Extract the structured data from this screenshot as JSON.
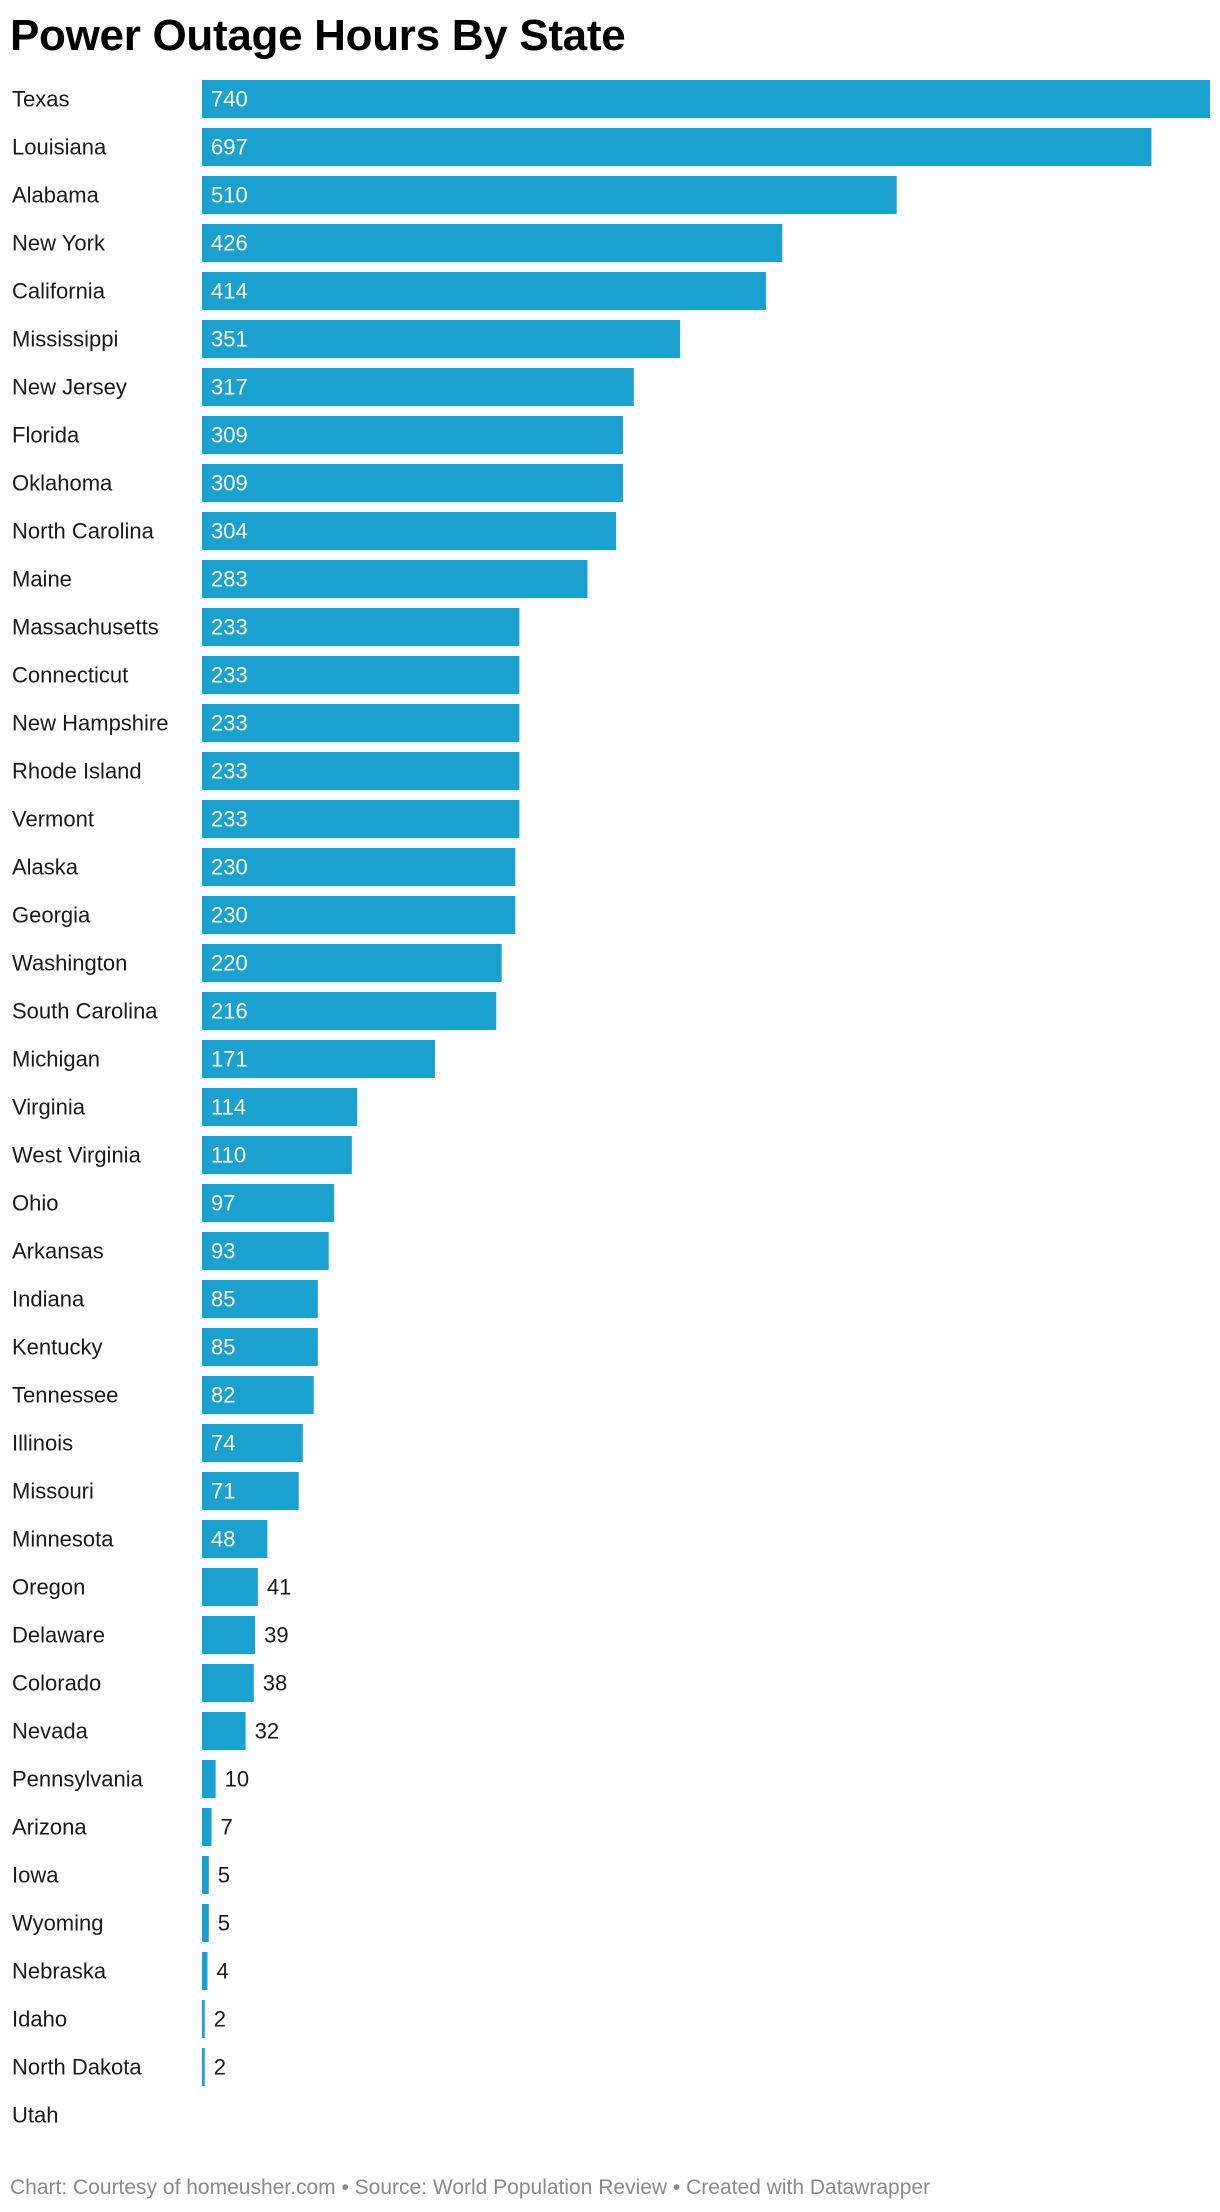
{
  "chart_data": {
    "type": "bar",
    "orientation": "horizontal",
    "title": "Power Outage Hours By State",
    "bar_color": "#1aa1cf",
    "categories": [
      "Texas",
      "Louisiana",
      "Alabama",
      "New York",
      "California",
      "Mississippi",
      "New Jersey",
      "Florida",
      "Oklahoma",
      "North Carolina",
      "Maine",
      "Massachusetts",
      "Connecticut",
      "New Hampshire",
      "Rhode Island",
      "Vermont",
      "Alaska",
      "Georgia",
      "Washington",
      "South Carolina",
      "Michigan",
      "Virginia",
      "West Virginia",
      "Ohio",
      "Arkansas",
      "Indiana",
      "Kentucky",
      "Tennessee",
      "Illinois",
      "Missouri",
      "Minnesota",
      "Oregon",
      "Delaware",
      "Colorado",
      "Nevada",
      "Pennsylvania",
      "Arizona",
      "Iowa",
      "Wyoming",
      "Nebraska",
      "Idaho",
      "North Dakota",
      "Utah"
    ],
    "values": [
      740,
      697,
      510,
      426,
      414,
      351,
      317,
      309,
      309,
      304,
      283,
      233,
      233,
      233,
      233,
      233,
      230,
      230,
      220,
      216,
      171,
      114,
      110,
      97,
      93,
      85,
      85,
      82,
      74,
      71,
      48,
      41,
      39,
      38,
      32,
      10,
      7,
      5,
      5,
      4,
      2,
      2,
      null
    ],
    "xlim": [
      0,
      740
    ],
    "grid": false,
    "legend": "none"
  },
  "footer": "Chart: Courtesy of homeusher.com • Source: World Population Review • Created with Datawrapper"
}
